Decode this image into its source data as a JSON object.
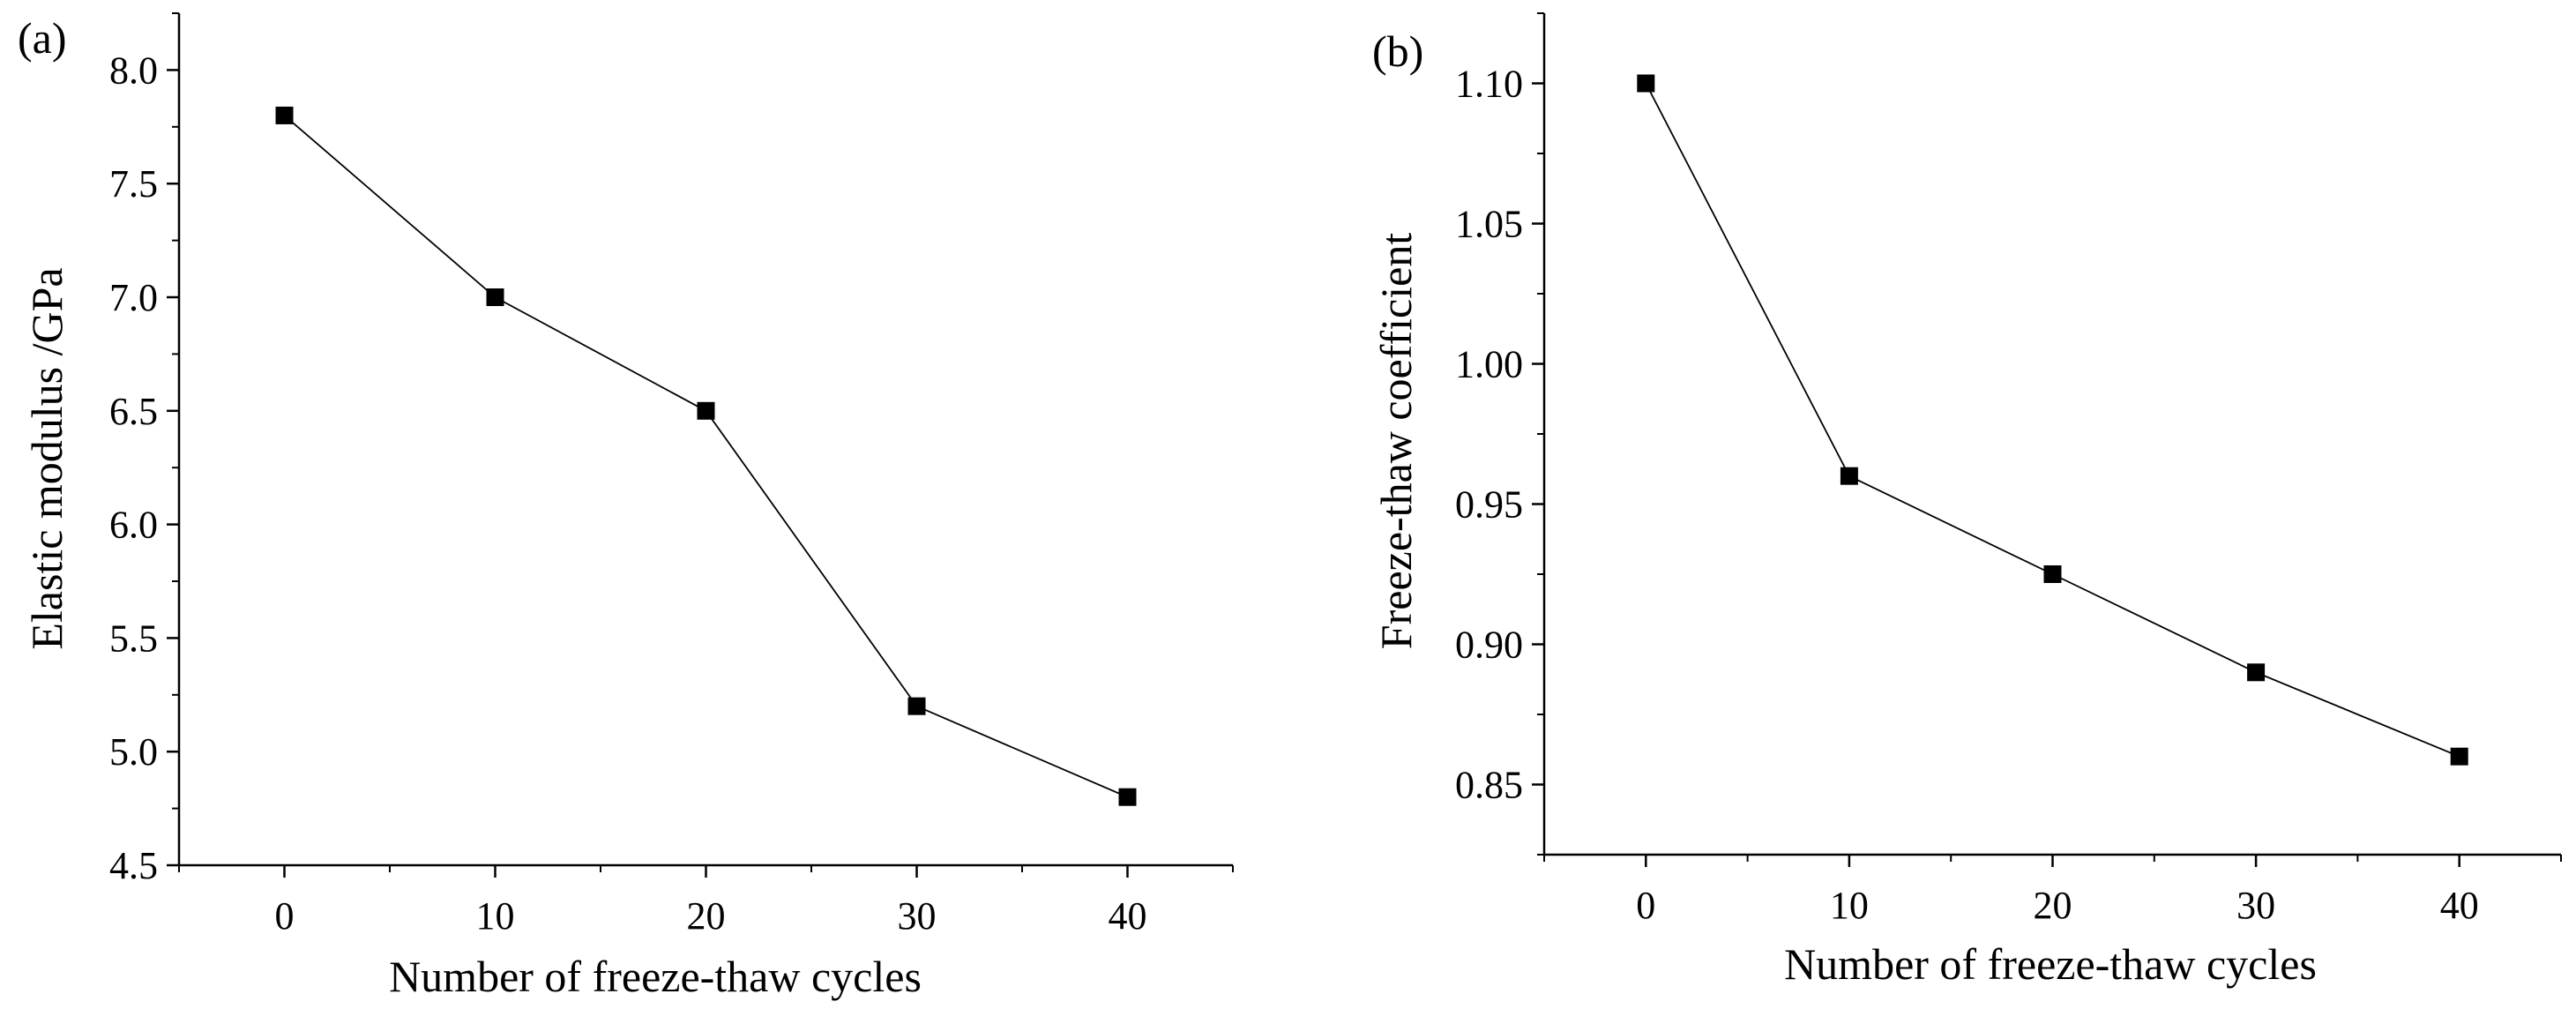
{
  "chart_data": [
    {
      "panel_label": "(a)",
      "type": "line",
      "title": "",
      "xlabel": "Number of freeze-thaw cycles",
      "ylabel": "Elastic modulus /GPa",
      "x": [
        0,
        10,
        20,
        30,
        40
      ],
      "values": [
        7.8,
        7.0,
        6.5,
        5.2,
        4.8
      ],
      "xlim": [
        -5,
        45
      ],
      "ylim": [
        4.5,
        8.25
      ],
      "x_ticks": [
        0,
        10,
        20,
        30,
        40
      ],
      "x_tick_labels": [
        "0",
        "10",
        "20",
        "30",
        "40"
      ],
      "y_ticks": [
        4.5,
        5.0,
        5.5,
        6.0,
        6.5,
        7.0,
        7.5,
        8.0
      ],
      "y_tick_labels": [
        "4.5",
        "5.0",
        "5.5",
        "6.0",
        "6.5",
        "7.0",
        "7.5",
        "8.0"
      ],
      "marker": "square",
      "grid": false,
      "line_color": "#000000"
    },
    {
      "panel_label": "(b)",
      "type": "line",
      "title": "",
      "xlabel": "Number of freeze-thaw cycles",
      "ylabel": "Freeze-thaw coefficient",
      "x": [
        0,
        10,
        20,
        30,
        40
      ],
      "values": [
        1.1,
        0.96,
        0.925,
        0.89,
        0.86
      ],
      "xlim": [
        -5,
        45
      ],
      "ylim": [
        0.825,
        1.125
      ],
      "x_ticks": [
        0,
        10,
        20,
        30,
        40
      ],
      "x_tick_labels": [
        "0",
        "10",
        "20",
        "30",
        "40"
      ],
      "y_ticks": [
        0.85,
        0.9,
        0.95,
        1.0,
        1.05,
        1.1
      ],
      "y_tick_labels": [
        "0.85",
        "0.90",
        "0.95",
        "1.00",
        "1.05",
        "1.10"
      ],
      "marker": "square",
      "grid": false,
      "line_color": "#000000"
    }
  ]
}
